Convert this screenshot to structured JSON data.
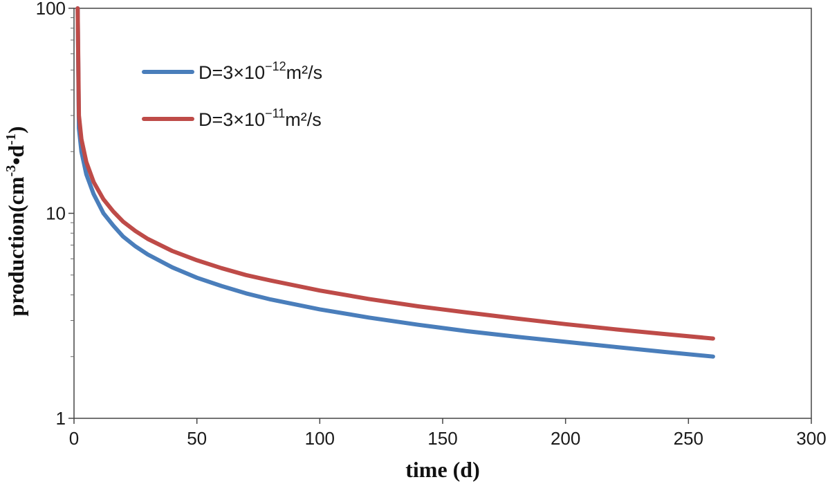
{
  "chart_data": {
    "type": "line",
    "xlabel": "time (d)",
    "ylabel_parts": [
      "production(cm",
      "-3",
      "•d",
      "-1",
      ")"
    ],
    "xlim": [
      0,
      300
    ],
    "ylim": [
      1,
      100
    ],
    "yscale": "log",
    "x_ticks": [
      "0",
      "50",
      "100",
      "150",
      "200",
      "250",
      "300"
    ],
    "x_tick_values": [
      0,
      50,
      100,
      150,
      200,
      250,
      300
    ],
    "y_ticks": [
      "1",
      "10",
      "100"
    ],
    "y_tick_values": [
      1,
      10,
      100
    ],
    "grid": false,
    "legend_position": "top-left",
    "series": [
      {
        "name_parts": [
          "D=3×10",
          "−12",
          "m²/s"
        ],
        "color": "#4a7ebb",
        "x": [
          1.5,
          2,
          3,
          5,
          8,
          12,
          16,
          20,
          25,
          30,
          40,
          50,
          60,
          70,
          80,
          100,
          120,
          140,
          160,
          180,
          200,
          220,
          240,
          260
        ],
        "y": [
          100,
          26,
          20,
          15.5,
          12.4,
          10.0,
          8.7,
          7.7,
          6.9,
          6.3,
          5.45,
          4.85,
          4.42,
          4.07,
          3.8,
          3.4,
          3.1,
          2.86,
          2.66,
          2.5,
          2.36,
          2.23,
          2.11,
          2.0
        ]
      },
      {
        "name_parts": [
          "D=3×10",
          "−11",
          "m²/s"
        ],
        "color": "#be4b48",
        "x": [
          1.5,
          2,
          3,
          5,
          8,
          12,
          16,
          20,
          25,
          30,
          40,
          50,
          60,
          70,
          80,
          100,
          120,
          140,
          160,
          180,
          200,
          220,
          240,
          260
        ],
        "y": [
          100,
          30,
          23,
          17.8,
          14.2,
          11.7,
          10.2,
          9.1,
          8.2,
          7.5,
          6.55,
          5.9,
          5.4,
          5.0,
          4.7,
          4.2,
          3.82,
          3.52,
          3.28,
          3.07,
          2.88,
          2.72,
          2.58,
          2.45
        ]
      }
    ]
  }
}
